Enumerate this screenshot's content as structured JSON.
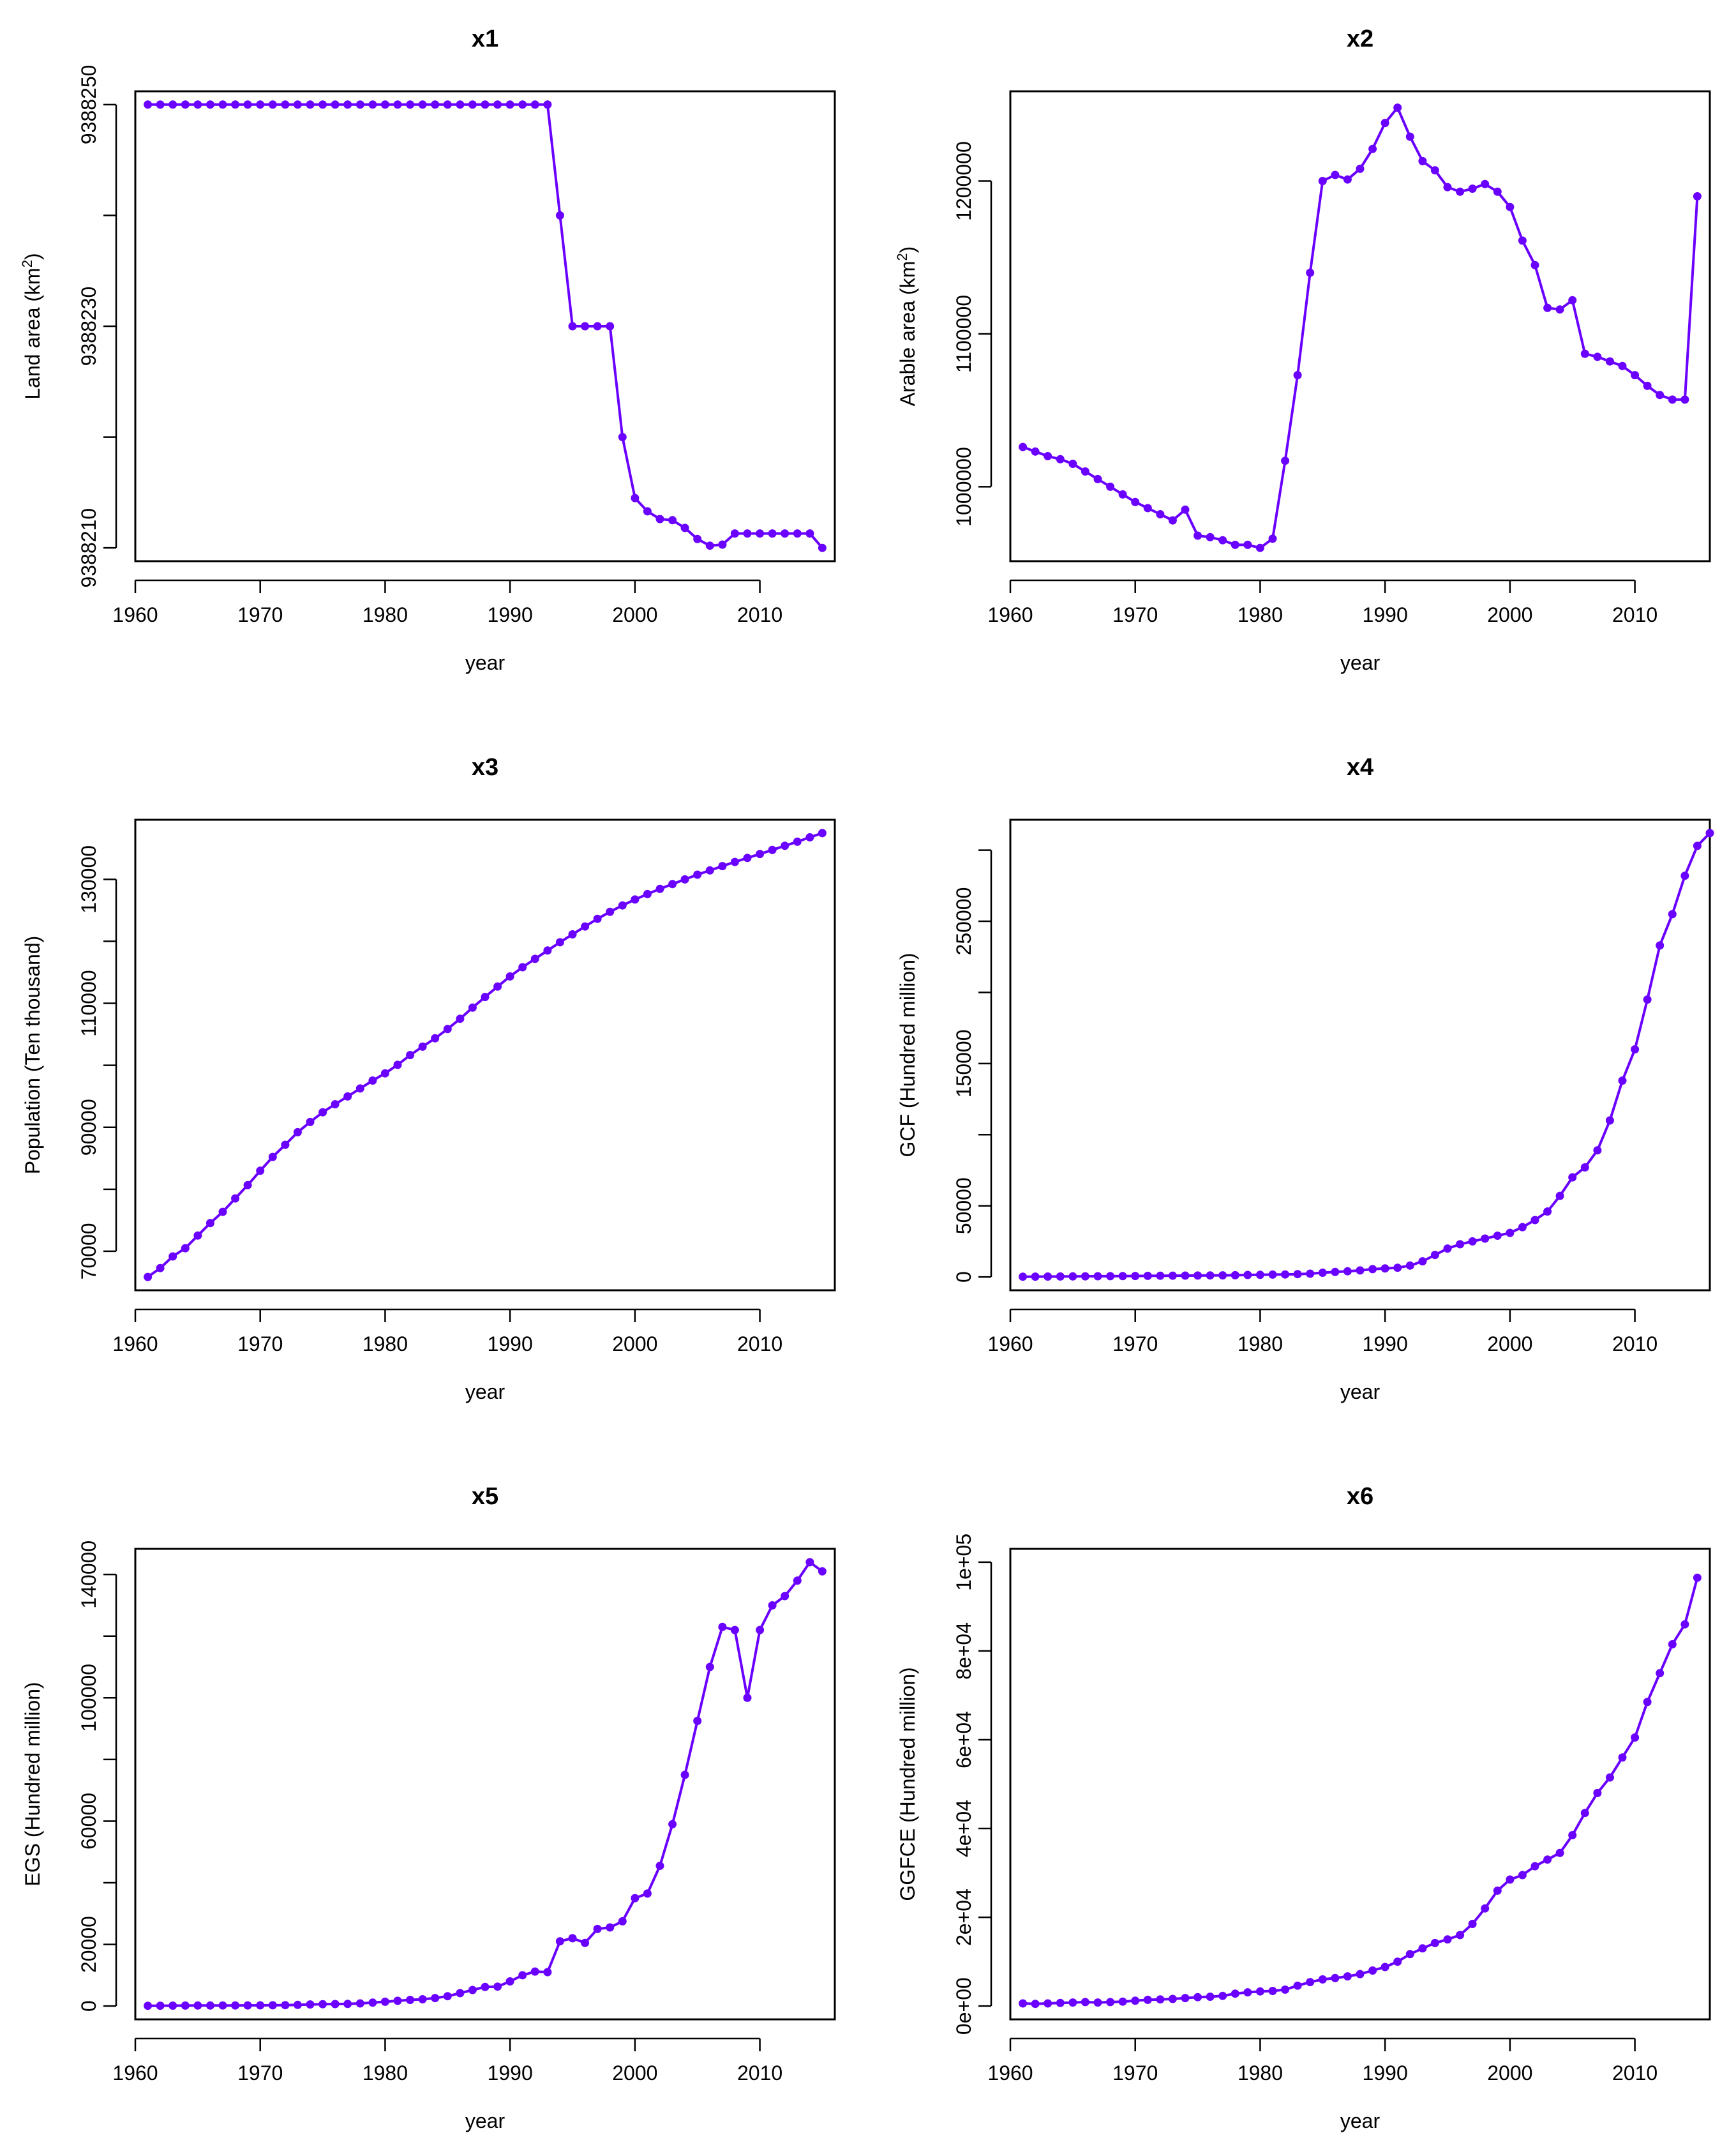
{
  "line_color": "#6a00ff",
  "chart_data": [
    {
      "id": "x1",
      "type": "line",
      "title": "x1",
      "xlabel": "year",
      "ylabel": "Land area (km²)",
      "ylabel_base": "Land area (km",
      "ylabel_sup": "2",
      "ylabel_close": ")",
      "x_start": 1961,
      "xlim": [
        1960,
        2016
      ],
      "ylim": [
        9388210,
        9388250
      ],
      "xticks": [
        1960,
        1970,
        1980,
        1990,
        2000,
        2010
      ],
      "xtick_labels": [
        "1960",
        "1970",
        "1980",
        "1990",
        "2000",
        "2010"
      ],
      "yticks": [
        9388210,
        9388220,
        9388230,
        9388240,
        9388250
      ],
      "ytick_labels": [
        "9388210",
        "",
        "9388230",
        "",
        "9388250"
      ],
      "values": [
        9388250,
        9388250,
        9388250,
        9388250,
        9388250,
        9388250,
        9388250,
        9388250,
        9388250,
        9388250,
        9388250,
        9388250,
        9388250,
        9388250,
        9388250,
        9388250,
        9388250,
        9388250,
        9388250,
        9388250,
        9388250,
        9388250,
        9388250,
        9388250,
        9388250,
        9388250,
        9388250,
        9388250,
        9388250,
        9388250,
        9388250,
        9388250,
        9388250,
        9388240,
        9388230,
        9388230,
        9388230,
        9388230,
        9388220,
        9388214.5,
        9388213.3,
        9388212.6,
        9388212.5,
        9388211.8,
        9388210.8,
        9388210.2,
        9388210.3,
        9388211.3,
        9388211.3,
        9388211.3,
        9388211.3,
        9388211.3,
        9388211.3,
        9388211.3,
        9388210
      ]
    },
    {
      "id": "x2",
      "type": "line",
      "title": "x2",
      "xlabel": "year",
      "ylabel": "Arable area (km²)",
      "ylabel_base": "Arable area (km",
      "ylabel_sup": "2",
      "ylabel_close": ")",
      "x_start": 1961,
      "xlim": [
        1960,
        2016
      ],
      "ylim": [
        960000,
        1250000
      ],
      "xticks": [
        1960,
        1970,
        1980,
        1990,
        2000,
        2010
      ],
      "xtick_labels": [
        "1960",
        "1970",
        "1980",
        "1990",
        "2000",
        "2010"
      ],
      "yticks": [
        1000000,
        1100000,
        1200000
      ],
      "ytick_labels": [
        "1000000",
        "1100000",
        "1200000"
      ],
      "values": [
        1026000,
        1023000,
        1020000,
        1018000,
        1015000,
        1010000,
        1005000,
        1000000,
        995000,
        990000,
        986000,
        982000,
        978000,
        985000,
        968000,
        967000,
        965000,
        962000,
        962000,
        960000,
        966000,
        1017000,
        1073000,
        1140000,
        1200000,
        1204000,
        1201000,
        1208000,
        1221000,
        1238000,
        1248000,
        1229000,
        1213000,
        1207000,
        1196000,
        1193000,
        1195000,
        1198000,
        1193000,
        1183000,
        1161000,
        1145000,
        1117000,
        1116000,
        1122000,
        1087000,
        1085000,
        1082000,
        1079000,
        1073000,
        1066000,
        1060000,
        1057000,
        1057000,
        1190000
      ]
    },
    {
      "id": "x3",
      "type": "line",
      "title": "x3",
      "xlabel": "year",
      "ylabel": "Population (Ten thousand)",
      "x_start": 1961,
      "xlim": [
        1960,
        2016
      ],
      "ylim": [
        65859,
        137462
      ],
      "xticks": [
        1960,
        1970,
        1980,
        1990,
        2000,
        2010
      ],
      "xtick_labels": [
        "1960",
        "1970",
        "1980",
        "1990",
        "2000",
        "2010"
      ],
      "yticks": [
        70000,
        80000,
        90000,
        100000,
        110000,
        120000,
        130000
      ],
      "ytick_labels": [
        "70000",
        "",
        "90000",
        "",
        "110000",
        "",
        "130000"
      ],
      "values": [
        65859,
        67295,
        69172,
        70499,
        72538,
        74542,
        76368,
        78534,
        80671,
        82992,
        85229,
        87177,
        89211,
        90859,
        92420,
        93717,
        94974,
        96259,
        97542,
        98705,
        100072,
        101654,
        103008,
        104357,
        105851,
        107507,
        109300,
        111026,
        112704,
        114333,
        115823,
        117171,
        118517,
        119850,
        121121,
        122389,
        123626,
        124761,
        125786,
        126743,
        127627,
        128453,
        129227,
        129988,
        130756,
        131448,
        132129,
        132802,
        133450,
        134091,
        134735,
        135404,
        136072,
        136782,
        137462
      ]
    },
    {
      "id": "x4",
      "type": "line",
      "title": "x4",
      "xlabel": "year",
      "ylabel": "GCF (Hundred million)",
      "x_start": 1961,
      "xlim": [
        1960,
        2016
      ],
      "ylim": [
        0,
        312000
      ],
      "xticks": [
        1960,
        1970,
        1980,
        1990,
        2000,
        2010
      ],
      "xtick_labels": [
        "1960",
        "1970",
        "1980",
        "1990",
        "2000",
        "2010"
      ],
      "yticks": [
        0,
        50000,
        100000,
        150000,
        200000,
        250000,
        300000
      ],
      "ytick_labels": [
        "0",
        "50000",
        "",
        "150000",
        "",
        "250000",
        ""
      ],
      "values": [
        200,
        250,
        300,
        350,
        400,
        450,
        500,
        550,
        600,
        700,
        800,
        850,
        900,
        950,
        1000,
        1100,
        1150,
        1250,
        1400,
        1500,
        1700,
        1750,
        2000,
        2300,
        3000,
        3500,
        4000,
        4600,
        5500,
        6000,
        6500,
        8000,
        11000,
        15500,
        20000,
        23000,
        25000,
        27000,
        29000,
        31000,
        35000,
        40000,
        46000,
        57000,
        70000,
        77000,
        89000,
        110000,
        138000,
        160000,
        195000,
        233000,
        255000,
        282000,
        303000,
        312000
      ]
    },
    {
      "id": "x5",
      "type": "line",
      "title": "x5",
      "xlabel": "year",
      "ylabel": "EGS (Hundred million)",
      "x_start": 1961,
      "xlim": [
        1960,
        2016
      ],
      "ylim": [
        0,
        144000
      ],
      "xticks": [
        1960,
        1970,
        1980,
        1990,
        2000,
        2010
      ],
      "xtick_labels": [
        "1960",
        "1970",
        "1980",
        "1990",
        "2000",
        "2010"
      ],
      "yticks": [
        0,
        20000,
        40000,
        60000,
        80000,
        100000,
        120000,
        140000
      ],
      "ytick_labels": [
        "0",
        "20000",
        "",
        "60000",
        "",
        "100000",
        "",
        "140000"
      ],
      "values": [
        100,
        120,
        140,
        160,
        170,
        180,
        190,
        200,
        220,
        240,
        260,
        300,
        380,
        520,
        600,
        650,
        700,
        850,
        1100,
        1400,
        1700,
        2000,
        2200,
        2600,
        3200,
        4200,
        5200,
        6200,
        6300,
        8000,
        10000,
        11200,
        11000,
        21000,
        22000,
        20500,
        25000,
        25500,
        27500,
        35000,
        36500,
        45500,
        59000,
        75000,
        92500,
        110000,
        123000,
        122000,
        100000,
        122000,
        130000,
        133000,
        138000,
        144000,
        141000
      ]
    },
    {
      "id": "x6",
      "type": "line",
      "title": "x6",
      "xlabel": "year",
      "ylabel": "GGFCE (Hundred million)",
      "x_start": 1961,
      "xlim": [
        1960,
        2016
      ],
      "ylim": [
        0,
        100000
      ],
      "xticks": [
        1960,
        1970,
        1980,
        1990,
        2000,
        2010
      ],
      "xtick_labels": [
        "1960",
        "1970",
        "1980",
        "1990",
        "2000",
        "2010"
      ],
      "yticks": [
        0,
        20000,
        40000,
        60000,
        80000,
        100000
      ],
      "ytick_labels": [
        "0e+00",
        "2e+04",
        "4e+04",
        "6e+04",
        "8e+04",
        "1e+05"
      ],
      "values": [
        600,
        500,
        600,
        700,
        800,
        900,
        800,
        900,
        1000,
        1200,
        1400,
        1500,
        1600,
        1800,
        2000,
        2100,
        2300,
        2800,
        3100,
        3300,
        3400,
        3700,
        4600,
        5400,
        6000,
        6300,
        6700,
        7200,
        8000,
        8800,
        10000,
        11700,
        13000,
        14200,
        15000,
        16000,
        18500,
        22000,
        26000,
        28500,
        29500,
        31500,
        33000,
        34500,
        38500,
        43500,
        48000,
        51500,
        56000,
        60500,
        68500,
        75000,
        81500,
        86000,
        96500
      ]
    }
  ]
}
